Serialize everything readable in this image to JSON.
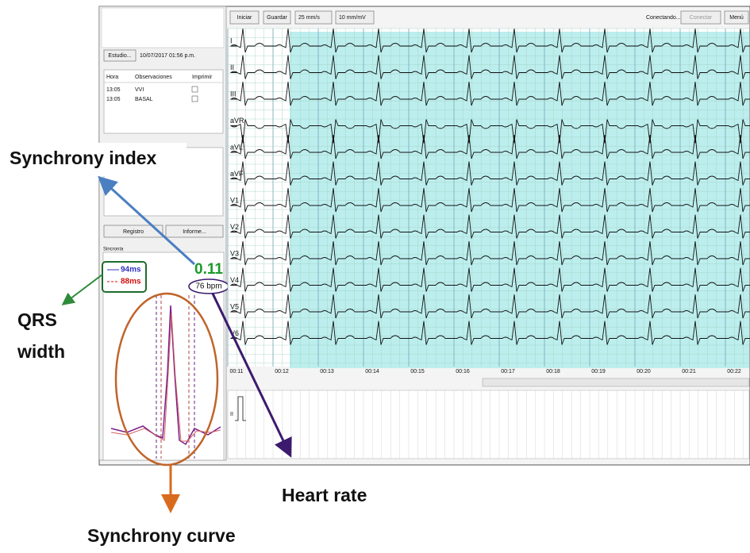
{
  "toolbar": {
    "start": "Iniciar",
    "save": "Guardar",
    "speed": "25 mm/s",
    "gain": "10 mm/mV",
    "status": "Conectando...",
    "connect": "Conectar",
    "menu": "Menú"
  },
  "study": {
    "button": "Estudio...",
    "date": "10/07/2017 01:56 p.m."
  },
  "table": {
    "headers": [
      "Hora",
      "Observaciones",
      "Imprimir"
    ],
    "rows": [
      [
        "13:05",
        "VVI"
      ],
      [
        "13:05",
        "BASAL"
      ]
    ]
  },
  "buttons": {
    "record": "Registro",
    "report": "Informe..."
  },
  "synchrony": {
    "label": "Sincronía",
    "qrs_blue": "94ms",
    "qrs_red": "88ms",
    "index": "0.11",
    "heart_rate": "76 bpm"
  },
  "ecg": {
    "leads": [
      "I",
      "II",
      "III",
      "aVR",
      "aVL",
      "aVF",
      "V1",
      "V2",
      "V3",
      "V4",
      "V5",
      "V6"
    ],
    "times": [
      "00:11",
      "00:12",
      "00:13",
      "00:14",
      "00:15",
      "00:16",
      "00:17",
      "00:18",
      "00:19",
      "00:20",
      "00:21",
      "00:22"
    ],
    "rhythm_lead": "II"
  },
  "annotations": {
    "synchrony_index": "Synchrony index",
    "qrs_width": [
      "QRS",
      "width"
    ],
    "heart_rate": "Heart rate",
    "synchrony_curve": "Synchrony curve"
  }
}
